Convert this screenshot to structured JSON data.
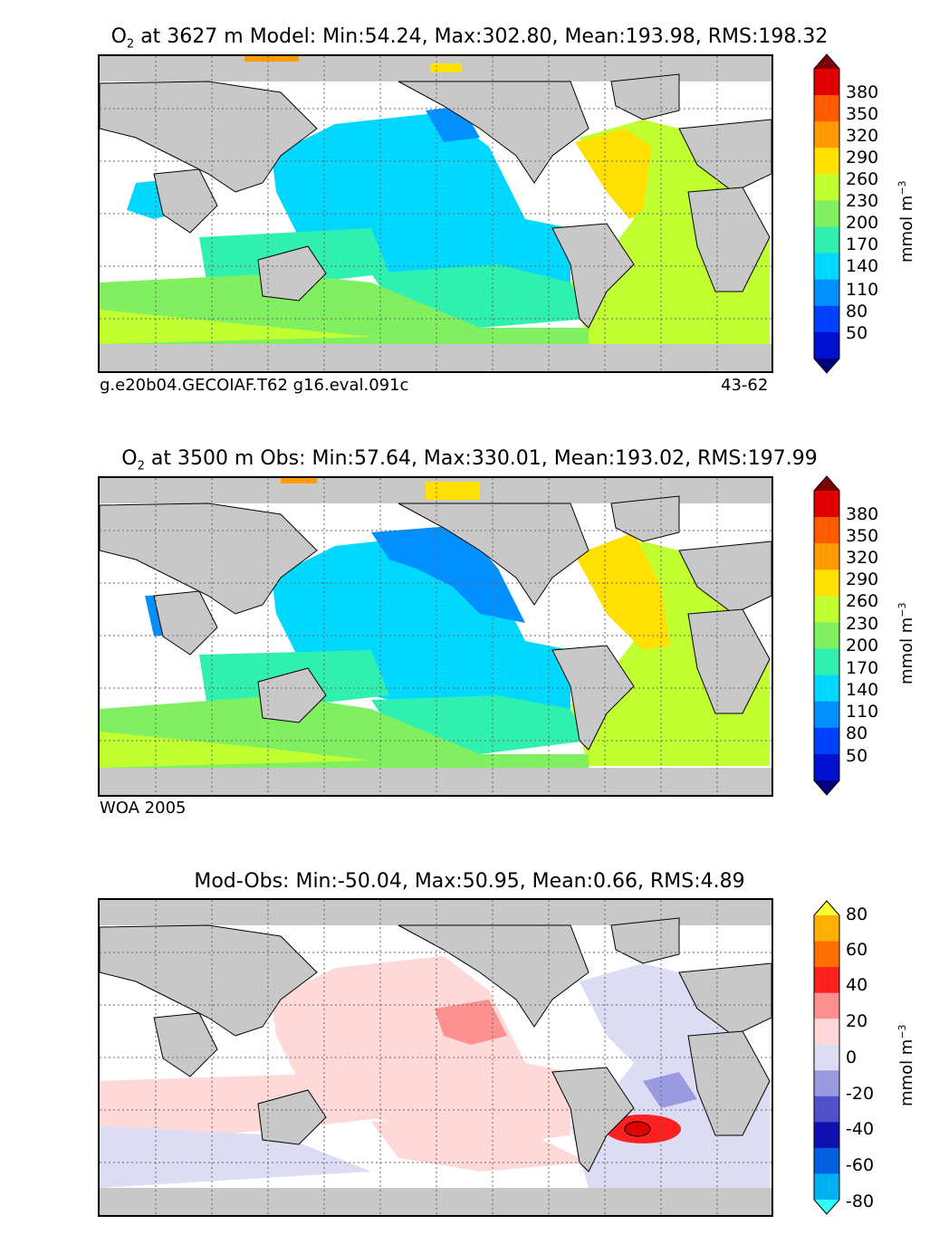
{
  "panels": [
    {
      "title_symbol": "O",
      "title_sub": "2",
      "title_rest": " at 3627 m Model: Min:54.24, Max:302.80, Mean:193.98, RMS:198.32",
      "caption_left": "g.e20b04.GECOIAF.T62 g16.eval.091c",
      "caption_right": "43-62",
      "colorbar_ticks": [
        "380",
        "350",
        "320",
        "290",
        "260",
        "230",
        "200",
        "170",
        "140",
        "110",
        "80",
        "50"
      ],
      "colorbar_colors": [
        "#7f0000",
        "#e00000",
        "#ff5a00",
        "#ff9a00",
        "#ffe000",
        "#c0ff30",
        "#80f060",
        "#30f0b0",
        "#00d8ff",
        "#0090ff",
        "#0040ff",
        "#0010d0",
        "#00007f"
      ],
      "unit": "mmol m",
      "unit_sup": "−3"
    },
    {
      "title_symbol": "O",
      "title_sub": "2",
      "title_rest": " at 3500 m Obs: Min:57.64, Max:330.01, Mean:193.02, RMS:197.99",
      "caption_left": "WOA 2005",
      "colorbar_ticks": [
        "380",
        "350",
        "320",
        "290",
        "260",
        "230",
        "200",
        "170",
        "140",
        "110",
        "80",
        "50"
      ],
      "colorbar_colors": [
        "#7f0000",
        "#e00000",
        "#ff5a00",
        "#ff9a00",
        "#ffe000",
        "#c0ff30",
        "#80f060",
        "#30f0b0",
        "#00d8ff",
        "#0090ff",
        "#0040ff",
        "#0010d0",
        "#00007f"
      ],
      "unit": "mmol m",
      "unit_sup": "−3"
    },
    {
      "title_text": "Mod-Obs: Min:-50.04, Max:50.95, Mean:0.66, RMS:4.89",
      "colorbar_ticks": [
        "80",
        "60",
        "40",
        "20",
        "0",
        "-20",
        "-40",
        "-60",
        "-80"
      ],
      "colorbar_colors": [
        "#ffff30",
        "#ffb000",
        "#ff7000",
        "#ff2020",
        "#ff9090",
        "#ffd8d8",
        "#dcdcf4",
        "#9a9ae0",
        "#5050c8",
        "#1010b0",
        "#0060e0",
        "#00b0f0",
        "#30ffff"
      ],
      "unit": "mmol m",
      "unit_sup": "−3"
    }
  ],
  "legend_colors": {
    "land": "#c8c8c8",
    "ocean_nodata": "#ffffff",
    "grid": "#666666"
  }
}
